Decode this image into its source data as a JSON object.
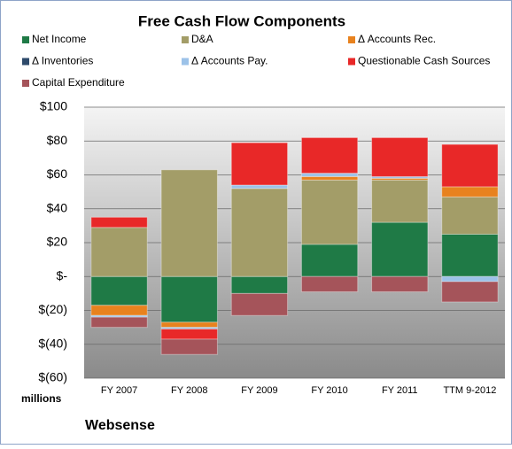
{
  "chart_data": {
    "type": "stacked-bar",
    "title": "Free Cash Flow Components",
    "categories": [
      "FY 2007",
      "FY 2008",
      "FY 2009",
      "FY 2010",
      "FY 2011",
      "TTM 9-2012"
    ],
    "series": [
      {
        "name": "Net Income",
        "color": "#1f7a46",
        "values": [
          -17,
          -27,
          -10,
          19,
          32,
          25
        ]
      },
      {
        "name": "D&A",
        "color": "#a39d68",
        "values": [
          29,
          63,
          52,
          38,
          25,
          22
        ]
      },
      {
        "name": "Δ Accounts Rec.",
        "color": "#e8821e",
        "values": [
          -6,
          -3,
          0,
          2,
          1,
          6
        ]
      },
      {
        "name": "Δ Inventories",
        "color": "#2e4a6b",
        "values": [
          0,
          0,
          0,
          0,
          0,
          0
        ]
      },
      {
        "name": "Δ Accounts Pay.",
        "color": "#9cc2e8",
        "values": [
          -1,
          -1,
          2,
          2,
          1,
          -3
        ]
      },
      {
        "name": "Questionable Cash Sources",
        "color": "#e82828",
        "values": [
          6,
          -6,
          25,
          21,
          23,
          25
        ]
      },
      {
        "name": "Capital Expenditure",
        "color": "#a5545a",
        "values": [
          -6,
          -9,
          -13,
          -9,
          -9,
          -12
        ]
      }
    ],
    "ylim": [
      -60,
      100
    ],
    "yticks": [
      {
        "value": -60,
        "label": "$(60)"
      },
      {
        "value": -40,
        "label": "$(40)"
      },
      {
        "value": -20,
        "label": "$(20)"
      },
      {
        "value": 0,
        "label": "$-"
      },
      {
        "value": 20,
        "label": "$20"
      },
      {
        "value": 40,
        "label": "$40"
      },
      {
        "value": 60,
        "label": "$60"
      },
      {
        "value": 80,
        "label": "$80"
      },
      {
        "value": 100,
        "label": "$100"
      }
    ],
    "grid": true,
    "y_label": "millions",
    "annotation": "Websense"
  }
}
